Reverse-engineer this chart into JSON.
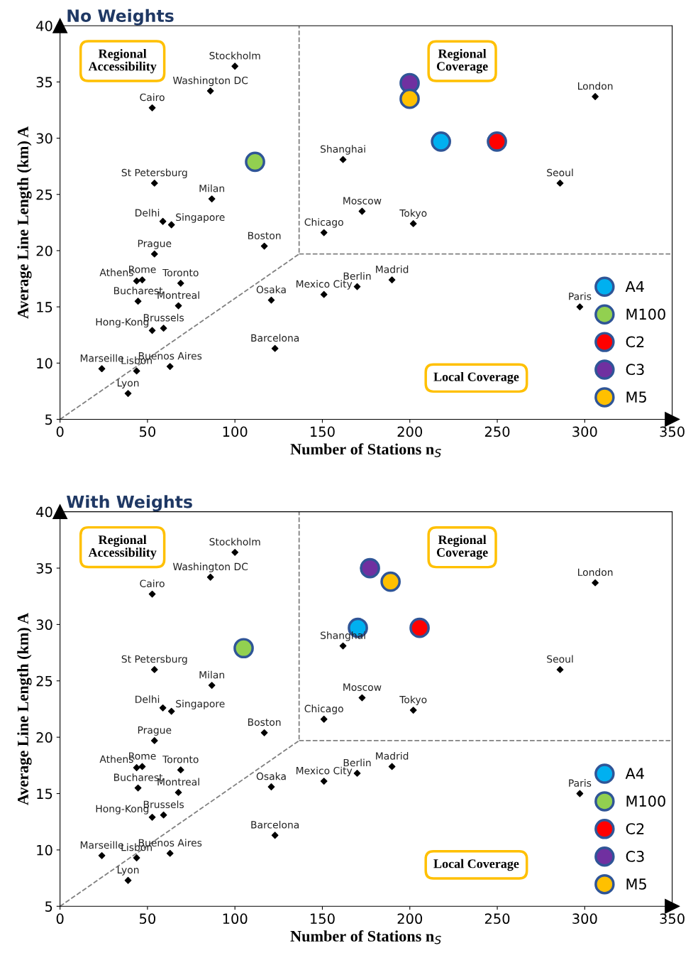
{
  "chart_data": [
    {
      "type": "scatter",
      "title": "No Weights",
      "xlabel": "Number of Stations n$_{S}$",
      "ylabel": "Average Line Length (km) A",
      "xlim": [
        0,
        350
      ],
      "ylim": [
        5,
        40
      ],
      "xticks": [
        0,
        50,
        100,
        150,
        200,
        250,
        300,
        350
      ],
      "yticks": [
        5,
        10,
        15,
        20,
        25,
        30,
        35,
        40
      ],
      "grid": false,
      "legend": "bottom right",
      "series": [
        {
          "type": "line",
          "line_style": "dashed",
          "marker": "none",
          "color": "#808080",
          "x": [
            0,
            136.7,
            136.7
          ],
          "values": [
            5,
            19.7,
            40
          ]
        },
        {
          "type": "line",
          "line_style": "dashed",
          "marker": "none",
          "color": "#808080",
          "x": [
            136.7,
            350
          ],
          "values": [
            19.7,
            19.7
          ]
        },
        {
          "type": "scatter",
          "marker": "diamond",
          "color": "#000000",
          "x": [
            100,
            86,
            52.7,
            306,
            161.8,
            285.9,
            54,
            86.8,
            172.7,
            202,
            58.8,
            63.7,
            150.9,
            116.8,
            54,
            43.8,
            47,
            69,
            189.8,
            169.9,
            150.9,
            120.8,
            44.6,
            67.7,
            297.2,
            59.2,
            52.7,
            122.9,
            62.9,
            23.9,
            43.8,
            38.9
          ],
          "values": [
            36.4,
            34.2,
            32.7,
            33.7,
            28.1,
            26.0,
            26.0,
            24.6,
            23.5,
            22.4,
            22.6,
            22.3,
            21.6,
            20.4,
            19.7,
            17.3,
            17.4,
            17.1,
            17.4,
            16.8,
            16.1,
            15.6,
            15.5,
            15.1,
            15.0,
            13.1,
            12.9,
            11.3,
            9.7,
            9.5,
            9.3,
            7.3
          ]
        },
        {
          "name": "A4",
          "marker": "circle",
          "color": "#00b0f0",
          "x": [
            217.8
          ],
          "values": [
            29.7
          ]
        },
        {
          "name": "M100",
          "marker": "circle",
          "color": "#92d050",
          "x": [
            111.5
          ],
          "values": [
            27.9
          ]
        },
        {
          "name": "C2",
          "marker": "circle",
          "color": "#ff0000",
          "x": [
            249.8
          ],
          "values": [
            29.7
          ]
        },
        {
          "name": "C3",
          "marker": "circle",
          "color": "#7030a0",
          "x": [
            199.9
          ],
          "values": [
            34.9
          ]
        },
        {
          "name": "M5",
          "marker": "circle",
          "color": "#ffc000",
          "x": [
            199.9
          ],
          "values": [
            33.5
          ]
        }
      ],
      "annotations": [
        "Regional\nAccessibility",
        "Regional\nCoverage",
        "Local Coverage",
        {
          "text": "Stockholm",
          "x": 100,
          "y": 36.4
        },
        {
          "text": "Washington DC",
          "x": 86,
          "y": 34.2
        },
        {
          "text": "Cairo",
          "x": 52.7,
          "y": 32.7
        },
        {
          "text": "London",
          "x": 306,
          "y": 33.7
        },
        {
          "text": "Shanghai",
          "x": 161.8,
          "y": 28.1
        },
        {
          "text": "Seoul",
          "x": 285.9,
          "y": 26.0
        },
        {
          "text": "St Petersburg",
          "x": 54,
          "y": 26.0
        },
        {
          "text": "Milan",
          "x": 86.8,
          "y": 24.6
        },
        {
          "text": "Moscow",
          "x": 172.7,
          "y": 23.5
        },
        {
          "text": "Tokyo",
          "x": 202,
          "y": 22.4
        },
        {
          "text": "Delhi",
          "x": 58.8,
          "y": 22.6
        },
        {
          "text": "Singapore",
          "x": 63.7,
          "y": 22.3
        },
        {
          "text": "Chicago",
          "x": 150.9,
          "y": 21.6
        },
        {
          "text": "Boston",
          "x": 116.8,
          "y": 20.4
        },
        {
          "text": "Prague",
          "x": 54,
          "y": 19.7
        },
        {
          "text": "Athens",
          "x": 43.8,
          "y": 17.3
        },
        {
          "text": "Rome",
          "x": 47,
          "y": 17.4
        },
        {
          "text": "Toronto",
          "x": 69,
          "y": 17.1
        },
        {
          "text": "Madrid",
          "x": 189.8,
          "y": 17.4
        },
        {
          "text": "Berlin",
          "x": 169.9,
          "y": 16.8
        },
        {
          "text": "Mexico City",
          "x": 150.9,
          "y": 16.1
        },
        {
          "text": "Osaka",
          "x": 120.8,
          "y": 15.6
        },
        {
          "text": "Bucharest",
          "x": 44.6,
          "y": 15.5
        },
        {
          "text": "Montreal",
          "x": 67.7,
          "y": 15.1
        },
        {
          "text": "Paris",
          "x": 297.2,
          "y": 15.0
        },
        {
          "text": "Brussels",
          "x": 59.2,
          "y": 13.1
        },
        {
          "text": "Hong-Kong",
          "x": 52.7,
          "y": 12.9
        },
        {
          "text": "Barcelona",
          "x": 122.9,
          "y": 11.3
        },
        {
          "text": "Buenos Aires",
          "x": 62.9,
          "y": 9.7
        },
        {
          "text": "Marseille",
          "x": 23.9,
          "y": 9.5
        },
        {
          "text": "Lisbon",
          "x": 43.8,
          "y": 9.3
        },
        {
          "text": "Lyon",
          "x": 38.9,
          "y": 7.3
        }
      ]
    },
    {
      "type": "scatter",
      "title": "With Weights",
      "xlabel": "Number of Stations n$_{S}$",
      "ylabel": "Average Line Length (km) A",
      "xlim": [
        0,
        350
      ],
      "ylim": [
        5,
        40
      ],
      "xticks": [
        0,
        50,
        100,
        150,
        200,
        250,
        300,
        350
      ],
      "yticks": [
        5,
        10,
        15,
        20,
        25,
        30,
        35,
        40
      ],
      "grid": false,
      "legend": "bottom right",
      "series": [
        {
          "type": "line",
          "line_style": "dashed",
          "marker": "none",
          "color": "#808080",
          "x": [
            0,
            136.7,
            136.7
          ],
          "values": [
            5,
            19.7,
            40
          ]
        },
        {
          "type": "line",
          "line_style": "dashed",
          "marker": "none",
          "color": "#808080",
          "x": [
            136.7,
            350
          ],
          "values": [
            19.7,
            19.7
          ]
        },
        {
          "type": "scatter",
          "marker": "diamond",
          "color": "#000000",
          "x": [
            100,
            86,
            52.7,
            306,
            161.8,
            285.9,
            54,
            86.8,
            172.7,
            202,
            58.8,
            63.7,
            150.9,
            116.8,
            54,
            43.8,
            47,
            69,
            189.8,
            169.9,
            150.9,
            120.8,
            44.6,
            67.7,
            297.2,
            59.2,
            52.7,
            122.9,
            62.9,
            23.9,
            43.8,
            38.9
          ],
          "values": [
            36.4,
            34.2,
            32.7,
            33.7,
            28.1,
            26.0,
            26.0,
            24.6,
            23.5,
            22.4,
            22.6,
            22.3,
            21.6,
            20.4,
            19.7,
            17.3,
            17.4,
            17.1,
            17.4,
            16.8,
            16.1,
            15.6,
            15.5,
            15.1,
            15.0,
            13.1,
            12.9,
            11.3,
            9.7,
            9.5,
            9.3,
            7.3
          ]
        },
        {
          "name": "A4",
          "marker": "circle",
          "color": "#00b0f0",
          "x": [
            170.3
          ],
          "values": [
            29.7
          ]
        },
        {
          "name": "M100",
          "marker": "circle",
          "color": "#92d050",
          "x": [
            105
          ],
          "values": [
            27.9
          ]
        },
        {
          "name": "C2",
          "marker": "circle",
          "color": "#ff0000",
          "x": [
            205.6
          ],
          "values": [
            29.7
          ]
        },
        {
          "name": "C3",
          "marker": "circle",
          "color": "#7030a0",
          "x": [
            177.2
          ],
          "values": [
            35.0
          ]
        },
        {
          "name": "M5",
          "marker": "circle",
          "color": "#ffc000",
          "x": [
            189
          ],
          "values": [
            33.8
          ]
        }
      ],
      "annotations": [
        "Regional\nAccessibility",
        "Regional\nCoverage",
        "Local Coverage",
        {
          "text": "Stockholm",
          "x": 100,
          "y": 36.4
        },
        {
          "text": "Washington DC",
          "x": 86,
          "y": 34.2
        },
        {
          "text": "Cairo",
          "x": 52.7,
          "y": 32.7
        },
        {
          "text": "London",
          "x": 306,
          "y": 33.7
        },
        {
          "text": "Shanghai",
          "x": 161.8,
          "y": 28.1
        },
        {
          "text": "Seoul",
          "x": 285.9,
          "y": 26.0
        },
        {
          "text": "St Petersburg",
          "x": 54,
          "y": 26.0
        },
        {
          "text": "Milan",
          "x": 86.8,
          "y": 24.6
        },
        {
          "text": "Moscow",
          "x": 172.7,
          "y": 23.5
        },
        {
          "text": "Tokyo",
          "x": 202,
          "y": 22.4
        },
        {
          "text": "Delhi",
          "x": 58.8,
          "y": 22.6
        },
        {
          "text": "Singapore",
          "x": 63.7,
          "y": 22.3
        },
        {
          "text": "Chicago",
          "x": 150.9,
          "y": 21.6
        },
        {
          "text": "Boston",
          "x": 116.8,
          "y": 20.4
        },
        {
          "text": "Prague",
          "x": 54,
          "y": 19.7
        },
        {
          "text": "Athens",
          "x": 43.8,
          "y": 17.3
        },
        {
          "text": "Rome",
          "x": 47,
          "y": 17.4
        },
        {
          "text": "Toronto",
          "x": 69,
          "y": 17.1
        },
        {
          "text": "Madrid",
          "x": 189.8,
          "y": 17.4
        },
        {
          "text": "Berlin",
          "x": 169.9,
          "y": 16.8
        },
        {
          "text": "Mexico City",
          "x": 150.9,
          "y": 16.1
        },
        {
          "text": "Osaka",
          "x": 120.8,
          "y": 15.6
        },
        {
          "text": "Bucharest",
          "x": 44.6,
          "y": 15.5
        },
        {
          "text": "Montreal",
          "x": 67.7,
          "y": 15.1
        },
        {
          "text": "Paris",
          "x": 297.2,
          "y": 15.0
        },
        {
          "text": "Brussels",
          "x": 59.2,
          "y": 13.1
        },
        {
          "text": "Hong-Kong",
          "x": 52.7,
          "y": 12.9
        },
        {
          "text": "Barcelona",
          "x": 122.9,
          "y": 11.3
        },
        {
          "text": "Buenos Aires",
          "x": 62.9,
          "y": 9.7
        },
        {
          "text": "Marseille",
          "x": 23.9,
          "y": 9.5
        },
        {
          "text": "Lisbon",
          "x": 43.8,
          "y": 9.3
        },
        {
          "text": "Lyon",
          "x": 38.9,
          "y": 7.3
        }
      ]
    }
  ]
}
